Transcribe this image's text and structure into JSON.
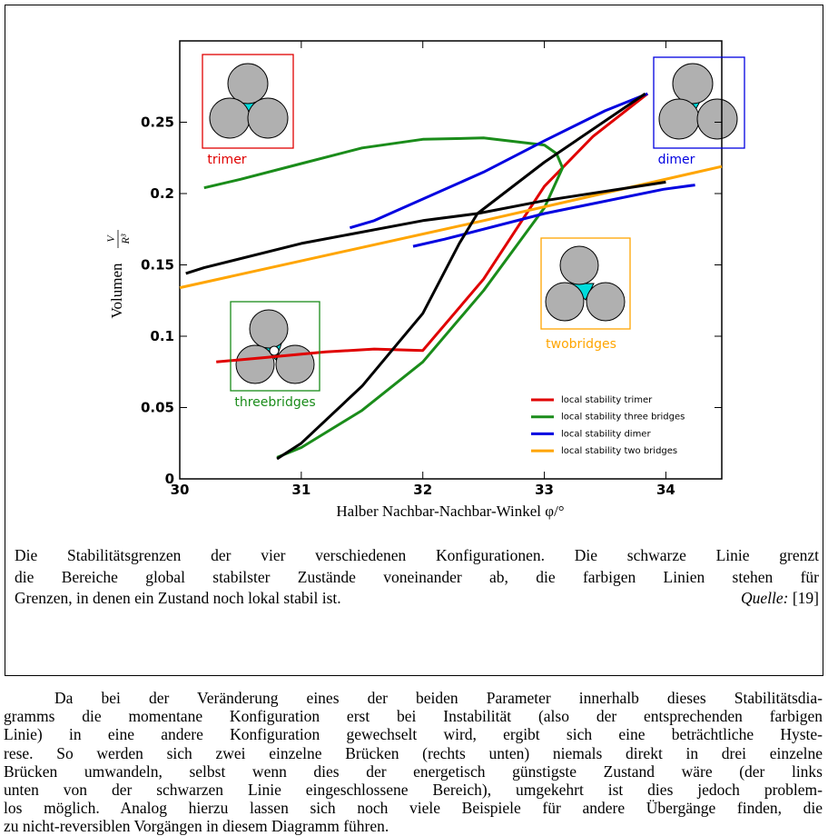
{
  "chart_data": {
    "type": "line",
    "x_label": "Halber Nachbar-Nachbar-Winkel φ/°",
    "y_label": "Volumen",
    "y_label_numerator": "V",
    "y_label_denominator": "R³",
    "xlim": [
      30,
      34.46
    ],
    "ylim": [
      0,
      0.307
    ],
    "xticks": [
      30,
      31,
      32,
      33,
      34
    ],
    "yticks": [
      0,
      0.05,
      0.1,
      0.15,
      0.2,
      0.25
    ],
    "legend": "lower right",
    "series": [
      {
        "name": "local stability trimer",
        "color": "#e00000",
        "x": [
          30.3,
          30.7,
          31.2,
          31.6,
          32.0,
          32.5,
          33.0,
          33.4,
          33.85
        ],
        "values": [
          0.082,
          0.085,
          0.089,
          0.091,
          0.09,
          0.14,
          0.205,
          0.24,
          0.27
        ]
      },
      {
        "name": "local stability three bridges",
        "color": "#1a8c1a",
        "x": [
          30.8,
          31.0,
          31.5,
          32.0,
          32.5,
          33.0,
          33.15,
          33.1,
          33.0,
          32.5,
          32.0,
          31.5,
          31.0,
          30.5,
          30.2
        ],
        "values": [
          0.015,
          0.022,
          0.048,
          0.082,
          0.132,
          0.19,
          0.218,
          0.228,
          0.234,
          0.239,
          0.238,
          0.232,
          0.221,
          0.21,
          0.204
        ]
      },
      {
        "name": "local stability dimer",
        "color": "#0000e0",
        "x": [
          31.4,
          31.6,
          32.5,
          33.0,
          33.5,
          33.85,
          null,
          31.92,
          32.18,
          33.0,
          33.98,
          34.24
        ],
        "values": [
          0.176,
          0.181,
          0.215,
          0.237,
          0.258,
          0.27,
          null,
          0.163,
          0.168,
          0.186,
          0.203,
          0.206
        ]
      },
      {
        "name": "local stability two bridges",
        "color": "#ffa500",
        "x": [
          30.0,
          32.5,
          34.46
        ],
        "values": [
          0.134,
          0.181,
          0.219
        ]
      },
      {
        "color": "#000000",
        "x": [
          30.05,
          30.2,
          31.0,
          32.0,
          32.45,
          33.0,
          33.83,
          null,
          32.45,
          33.0,
          34.0,
          null,
          32.45,
          32.3,
          32.0,
          31.5,
          31.0,
          30.8
        ],
        "values": [
          0.144,
          0.148,
          0.165,
          0.181,
          0.186,
          0.222,
          0.27,
          null,
          0.186,
          0.195,
          0.208,
          null,
          0.186,
          0.165,
          0.116,
          0.065,
          0.025,
          0.014
        ]
      }
    ],
    "annotations": [
      {
        "text": "trimer",
        "color": "#e00000"
      },
      {
        "text": "dimer",
        "color": "#0000e0"
      },
      {
        "text": "twobridges",
        "color": "#ffa500"
      },
      {
        "text": "threebridges",
        "color": "#1a8c1a"
      }
    ]
  },
  "caption": {
    "lines": [
      "Die Stabilitätsgrenzen der vier verschiedenen Konfigurationen. Die schwarze Linie grenzt",
      "die Bereiche global stabilster Zustände voneinander ab, die farbigen Linien stehen für",
      "Grenzen, in denen ein Zustand noch lokal stabil ist."
    ],
    "source_label": "Quelle:",
    "source_ref": "[19]"
  },
  "paragraph": {
    "lines": [
      "Da bei der Veränderung eines der beiden Parameter innerhalb dieses Stabilitätsdia-",
      "gramms die momentane Konfiguration erst bei Instabilität (also der entsprechenden farbigen",
      "Linie) in eine andere Konfiguration gewechselt wird, ergibt sich eine beträchtliche Hyste-",
      "rese. So werden sich zwei einzelne Brücken (rechts unten) niemals direkt in drei einzelne",
      "Brücken umwandeln, selbst wenn dies der energetisch günstigste Zustand wäre (der links",
      "unten von der schwarzen Linie eingeschlossene Bereich), umgekehrt ist dies jedoch problem-",
      "los möglich. Analog hierzu lassen sich noch viele Beispiele für andere Übergänge finden, die",
      "zu nicht-reversiblen Vorgängen in diesem Diagramm führen."
    ]
  }
}
